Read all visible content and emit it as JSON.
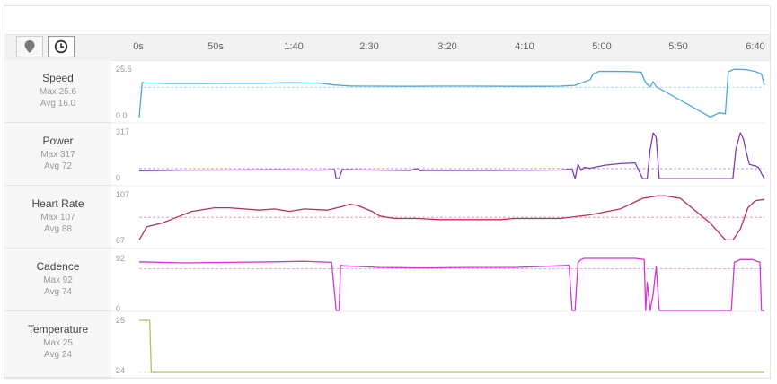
{
  "toolbar": {
    "map_icon": "map-pin-icon",
    "time_icon": "clock-icon"
  },
  "x_axis": {
    "ticks": [
      "0s",
      "50s",
      "1:40",
      "2:30",
      "3:20",
      "4:10",
      "5:00",
      "5:50",
      "6:40"
    ],
    "tick_seconds": [
      0,
      50,
      100,
      150,
      200,
      250,
      300,
      350,
      400
    ],
    "range": [
      0,
      416
    ]
  },
  "chart_data": [
    {
      "type": "line",
      "name": "Speed",
      "max_label": "Max 25.6",
      "avg_label": "Avg 16.0",
      "color": "#4aa8d8",
      "avg": 16.0,
      "ylim": [
        0,
        25.6
      ],
      "yticks": [
        "25.6",
        "0.0"
      ],
      "x": [
        0,
        2,
        4,
        20,
        40,
        60,
        80,
        100,
        120,
        130,
        140,
        150,
        180,
        200,
        220,
        250,
        270,
        280,
        290,
        300,
        302,
        306,
        325,
        334,
        336,
        338,
        340,
        342,
        344,
        380,
        386,
        390,
        392,
        396,
        404,
        410,
        414,
        416
      ],
      "y": [
        0,
        18.5,
        18.3,
        18.0,
        18.0,
        18.1,
        18.1,
        18.4,
        18.2,
        17.2,
        16.7,
        16.6,
        16.5,
        16.6,
        16.6,
        16.5,
        16.5,
        16.6,
        17.0,
        20.0,
        23.0,
        24.4,
        24.3,
        24.0,
        20.0,
        17.5,
        16.2,
        19.0,
        16.3,
        0.3,
        2.5,
        2.0,
        24.2,
        25.5,
        25.3,
        24.3,
        23.0,
        17.0
      ]
    },
    {
      "type": "line",
      "name": "Power",
      "max_label": "Max 317",
      "avg_label": "Avg 72",
      "color": "#7a3fb0",
      "avg": 72,
      "ylim": [
        0,
        317
      ],
      "yticks": [
        "317",
        "0"
      ],
      "x": [
        0,
        30,
        60,
        90,
        120,
        130,
        131,
        133,
        135,
        160,
        180,
        185,
        187,
        189,
        220,
        250,
        280,
        288,
        290,
        292,
        294,
        296,
        300,
        310,
        320,
        330,
        335,
        338,
        340,
        342,
        344,
        346,
        350,
        380,
        395,
        397,
        400,
        402,
        404,
        406,
        410,
        412,
        414,
        416
      ],
      "y": [
        58,
        62,
        63,
        64,
        62,
        65,
        5,
        5,
        65,
        62,
        60,
        72,
        58,
        61,
        60,
        61,
        63,
        68,
        5,
        100,
        60,
        80,
        75,
        95,
        105,
        110,
        5,
        5,
        200,
        311,
        280,
        5,
        5,
        5,
        5,
        200,
        311,
        270,
        180,
        100,
        90,
        80,
        40,
        5
      ]
    },
    {
      "type": "line",
      "name": "Heart Rate",
      "max_label": "Max 107",
      "avg_label": "Avg 88",
      "color": "#b5305e",
      "avg": 88,
      "ylim": [
        67,
        107
      ],
      "yticks": [
        "107",
        "67"
      ],
      "x": [
        0,
        5,
        15,
        25,
        35,
        50,
        60,
        80,
        90,
        100,
        110,
        125,
        135,
        140,
        145,
        155,
        160,
        170,
        185,
        200,
        220,
        240,
        250,
        260,
        280,
        300,
        320,
        335,
        345,
        350,
        360,
        380,
        390,
        395,
        400,
        405,
        410,
        416
      ],
      "y": [
        69,
        80,
        83,
        88,
        93,
        96,
        96,
        94,
        95,
        93,
        95,
        94,
        97,
        99,
        98,
        93,
        89,
        87,
        87,
        86,
        86,
        86,
        87,
        87,
        87,
        90,
        95,
        104,
        106,
        106,
        104,
        83,
        69,
        69,
        78,
        96,
        102,
        103
      ]
    },
    {
      "type": "line",
      "name": "Cadence",
      "max_label": "Max 92",
      "avg_label": "Avg 74",
      "color": "#d535d0",
      "avg": 74,
      "ylim": [
        0,
        92
      ],
      "yticks": [
        "92",
        "0"
      ],
      "x": [
        0,
        30,
        60,
        90,
        110,
        128,
        131,
        133,
        134,
        136,
        160,
        190,
        220,
        250,
        270,
        286,
        288,
        290,
        292,
        294,
        296,
        330,
        336,
        337,
        338,
        340,
        342,
        344,
        346,
        348,
        349,
        350,
        360,
        390,
        394,
        396,
        400,
        408,
        413,
        414,
        416
      ],
      "y": [
        86,
        84,
        85,
        86,
        87,
        85,
        0,
        0,
        80,
        79,
        76,
        75,
        76,
        76,
        78,
        80,
        0,
        0,
        85,
        90,
        92,
        92,
        90,
        0,
        50,
        0,
        30,
        78,
        0,
        0,
        0,
        0,
        0,
        0,
        0,
        85,
        90,
        90,
        85,
        0,
        0
      ]
    },
    {
      "type": "line",
      "name": "Temperature",
      "max_label": "Max 25",
      "avg_label": "Avg 24",
      "color": "#a8c85a",
      "avg": 24,
      "ylim": [
        24,
        25
      ],
      "yticks": [
        "25",
        "24"
      ],
      "x": [
        0,
        7,
        8,
        416
      ],
      "y": [
        25,
        25,
        24,
        24
      ]
    }
  ]
}
